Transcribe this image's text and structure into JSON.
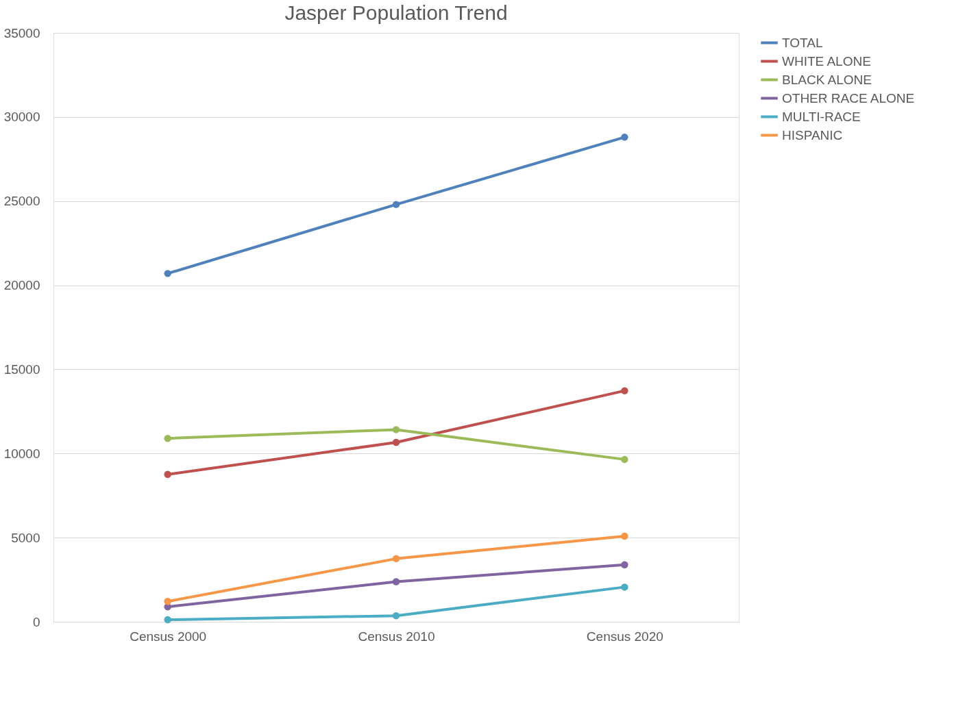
{
  "chart_data": {
    "type": "line",
    "title": "Jasper Population Trend",
    "categories": [
      "Census 2000",
      "Census 2010",
      "Census 2020"
    ],
    "series": [
      {
        "name": "TOTAL",
        "color": "#4f81bd",
        "values": [
          20700,
          24800,
          28800
        ]
      },
      {
        "name": "WHITE ALONE",
        "color": "#c0504d",
        "values": [
          8760,
          10660,
          13730
        ]
      },
      {
        "name": "BLACK ALONE",
        "color": "#9bbb59",
        "values": [
          10900,
          11420,
          9650
        ]
      },
      {
        "name": "OTHER RACE ALONE",
        "color": "#8064a2",
        "values": [
          890,
          2380,
          3390
        ]
      },
      {
        "name": "MULTI-RACE",
        "color": "#4bacc6",
        "values": [
          120,
          360,
          2060
        ]
      },
      {
        "name": "HISPANIC",
        "color": "#f79646",
        "values": [
          1210,
          3750,
          5090
        ]
      }
    ],
    "ylim": [
      0,
      35000
    ],
    "yticks": [
      0,
      5000,
      10000,
      15000,
      20000,
      25000,
      30000,
      35000
    ],
    "grid": "y",
    "legend": "right",
    "marker": "circle",
    "line_style": "solid"
  }
}
